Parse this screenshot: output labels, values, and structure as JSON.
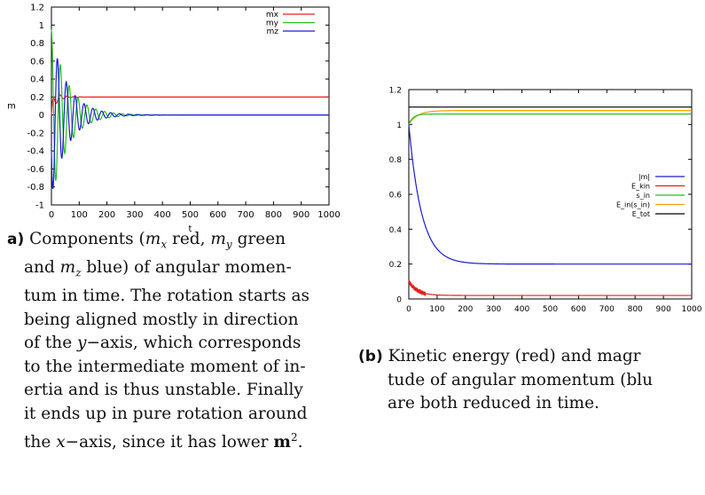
{
  "chart_data": [
    {
      "type": "line",
      "title": "",
      "xlabel": "t",
      "ylabel": "m",
      "xlim": [
        0,
        1000
      ],
      "ylim": [
        -1,
        1.2
      ],
      "x_ticks": [
        0,
        100,
        200,
        300,
        400,
        500,
        600,
        700,
        800,
        900,
        1000
      ],
      "y_ticks": [
        -1,
        -0.8,
        -0.6,
        -0.4,
        -0.2,
        0,
        0.2,
        0.4,
        0.6,
        0.8,
        1,
        1.2
      ],
      "grid": false,
      "legend_position": "top-right",
      "series": [
        {
          "name": "mx",
          "color": "#e3201b",
          "start": 0.0,
          "final": 0.2,
          "amplitude": 0.1,
          "period": 25,
          "decay_time": 25
        },
        {
          "name": "my",
          "color": "#1fc21f",
          "start": 1.0,
          "final": 0.0,
          "amplitude": 0.95,
          "period": 32,
          "decay_time": 60
        },
        {
          "name": "mz",
          "color": "#1a1ad6",
          "start": -0.2,
          "final": 0.0,
          "amplitude": 0.9,
          "period": 32,
          "decay_time": 60
        }
      ]
    },
    {
      "type": "line",
      "title": "",
      "xlabel": "",
      "ylabel": "",
      "xlim": [
        0,
        1000
      ],
      "ylim": [
        0,
        1.2
      ],
      "x_ticks": [
        0,
        100,
        200,
        300,
        400,
        500,
        600,
        700,
        800,
        900,
        1000
      ],
      "y_ticks": [
        0,
        0.2,
        0.4,
        0.6,
        0.8,
        1,
        1.2
      ],
      "grid": false,
      "legend_position": "right",
      "series": [
        {
          "name": "|m|",
          "color": "#1a1ad6",
          "start": 1.0,
          "final": 0.2,
          "decay_time": 45
        },
        {
          "name": "E_kin",
          "color": "#e3201b",
          "start": 0.1,
          "final": 0.02,
          "decay_time": 30
        },
        {
          "name": "s_in",
          "color": "#1fc21f",
          "start": 1.0,
          "final": 1.06,
          "decay_time": 15
        },
        {
          "name": "E_in(s_in)",
          "color": "#ff9f00",
          "start": 1.0,
          "final": 1.08,
          "decay_time": 30
        },
        {
          "name": "E_tot",
          "color": "#000000",
          "start": 1.1,
          "final": 1.1,
          "decay_time": 1
        }
      ]
    }
  ],
  "captions": {
    "a_tag": "a)",
    "a_lines": [
      [
        "Components (",
        {
          "m": "m"
        },
        {
          "sub": "x"
        },
        " red, ",
        {
          "m": "m"
        },
        {
          "sub": "y"
        },
        " green"
      ],
      [
        "and ",
        {
          "m": "m"
        },
        {
          "sub": "z"
        },
        " blue) of angular momen-"
      ],
      [
        "tum in time. The rotation starts as"
      ],
      [
        "being aligned mostly in direction"
      ],
      [
        "of the ",
        {
          "m": "y"
        },
        "−axis, which corresponds"
      ],
      [
        "to the intermediate moment of in-"
      ],
      [
        "ertia and is thus unstable. Finally"
      ],
      [
        "it ends up in pure rotation around"
      ],
      [
        "the ",
        {
          "m": "x"
        },
        "−axis, since it has lower ",
        {
          "b": "m"
        },
        {
          "sup": "2"
        },
        "."
      ]
    ],
    "b_tag": "(b)",
    "b_lines": [
      [
        "Kinetic energy (red) and magr"
      ],
      [
        "tude of angular momentum (blu"
      ],
      [
        "are both reduced in time."
      ]
    ]
  }
}
